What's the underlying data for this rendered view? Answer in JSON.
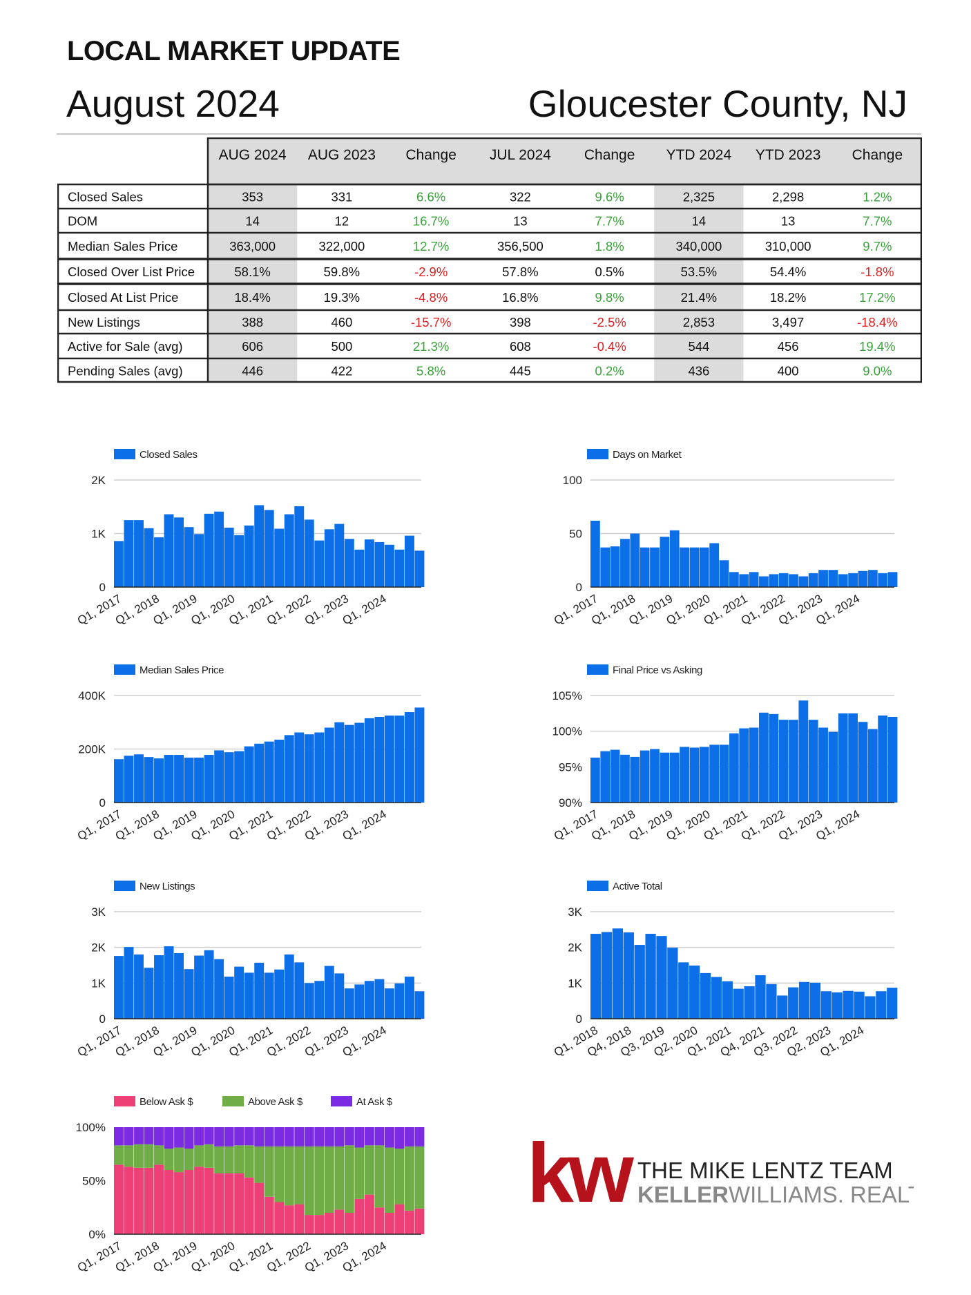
{
  "header": {
    "title": "LOCAL MARKET UPDATE",
    "month": "August 2024",
    "county": "Gloucester County, NJ"
  },
  "stats_table": {
    "columns": [
      "AUG 2024",
      "AUG 2023",
      "Change",
      "JUL 2024",
      "Change",
      "YTD 2024",
      "YTD 2023",
      "Change"
    ],
    "rows": [
      {
        "label": "Closed Sales",
        "values": [
          "353",
          "331",
          "6.6%",
          "322",
          "9.6%",
          "2,325",
          "2,298",
          "1.2%"
        ]
      },
      {
        "label": "DOM",
        "values": [
          "14",
          "12",
          "16.7%",
          "13",
          "7.7%",
          "14",
          "13",
          "7.7%"
        ]
      },
      {
        "label": "Median Sales Price",
        "values": [
          "363,000",
          "322,000",
          "12.7%",
          "356,500",
          "1.8%",
          "340,000",
          "310,000",
          "9.7%"
        ]
      },
      {
        "label": "Closed Over List Price",
        "values": [
          "58.1%",
          "59.8%",
          "-2.9%",
          "57.8%",
          "0.5%",
          "53.5%",
          "54.4%",
          "-1.8%"
        ]
      },
      {
        "label": "Closed At List Price",
        "values": [
          "18.4%",
          "19.3%",
          "-4.8%",
          "16.8%",
          "9.8%",
          "21.4%",
          "18.2%",
          "17.2%"
        ]
      },
      {
        "label": "New Listings",
        "values": [
          "388",
          "460",
          "-15.7%",
          "398",
          "-2.5%",
          "2,853",
          "3,497",
          "-18.4%"
        ]
      },
      {
        "label": "Active for Sale (avg)",
        "values": [
          "606",
          "500",
          "21.3%",
          "608",
          "-0.4%",
          "544",
          "456",
          "19.4%"
        ]
      },
      {
        "label": "Pending Sales (avg)",
        "values": [
          "446",
          "422",
          "5.8%",
          "445",
          "0.2%",
          "436",
          "400",
          "9.0%"
        ]
      }
    ],
    "colors": {
      "positive": "#3aa33a",
      "negative": "#e02020",
      "neutral": "#111111",
      "shaded": "#dcdcdc"
    }
  },
  "chart_data": [
    {
      "id": "closed-sales",
      "type": "bar",
      "legend": [
        "Closed Sales"
      ],
      "y_ticks": [
        "0",
        "1K",
        "2K"
      ],
      "ylim": [
        0,
        2000
      ],
      "grid": true,
      "legend_position": "top-left",
      "x_tick_labels": [
        "Q1, 2017",
        "Q1, 2018",
        "Q1, 2019",
        "Q1, 2020",
        "Q1, 2021",
        "Q1, 2022",
        "Q1, 2023",
        "Q1, 2024"
      ],
      "values": [
        860,
        1250,
        1250,
        1100,
        930,
        1360,
        1300,
        1120,
        990,
        1370,
        1410,
        1110,
        970,
        1150,
        1530,
        1440,
        1090,
        1360,
        1510,
        1260,
        870,
        1080,
        1180,
        900,
        700,
        890,
        840,
        790,
        700,
        960,
        680
      ]
    },
    {
      "id": "days-on-market",
      "type": "bar",
      "legend": [
        "Days on Market"
      ],
      "y_ticks": [
        "0",
        "50",
        "100"
      ],
      "ylim": [
        0,
        100
      ],
      "grid": true,
      "legend_position": "top-left",
      "x_tick_labels": [
        "Q1, 2017",
        "Q1, 2018",
        "Q1, 2019",
        "Q1, 2020",
        "Q1, 2021",
        "Q1, 2022",
        "Q1, 2023",
        "Q1, 2024"
      ],
      "values": [
        62,
        37,
        38,
        45,
        50,
        37,
        37,
        47,
        53,
        37,
        37,
        37,
        41,
        25,
        14,
        12,
        14,
        10,
        12,
        13,
        12,
        10,
        13,
        16,
        16,
        12,
        13,
        15,
        16,
        13,
        14
      ]
    },
    {
      "id": "median-sales-price",
      "type": "bar",
      "legend": [
        "Median Sales Price"
      ],
      "y_ticks": [
        "0",
        "200K",
        "400K"
      ],
      "ylim": [
        0,
        400000
      ],
      "grid": true,
      "legend_position": "top-left",
      "x_tick_labels": [
        "Q1, 2017",
        "Q1, 2018",
        "Q1, 2019",
        "Q1, 2020",
        "Q1, 2021",
        "Q1, 2022",
        "Q1, 2023",
        "Q1, 2024"
      ],
      "values": [
        162000,
        175000,
        180000,
        170000,
        165000,
        178000,
        178000,
        168000,
        168000,
        178000,
        195000,
        188000,
        192000,
        210000,
        220000,
        228000,
        235000,
        252000,
        262000,
        255000,
        262000,
        280000,
        300000,
        290000,
        298000,
        315000,
        320000,
        325000,
        325000,
        338000,
        355000
      ]
    },
    {
      "id": "final-price-vs-asking",
      "type": "bar",
      "legend": [
        "Final Price vs Asking"
      ],
      "y_ticks": [
        "90%",
        "95%",
        "100%",
        "105%"
      ],
      "ylim": [
        90,
        105
      ],
      "grid": true,
      "legend_position": "top-left",
      "x_tick_labels": [
        "Q1, 2017",
        "Q1, 2018",
        "Q1, 2019",
        "Q1, 2020",
        "Q1, 2021",
        "Q1, 2022",
        "Q1, 2023",
        "Q1, 2024"
      ],
      "values": [
        96.3,
        97.2,
        97.4,
        96.7,
        96.4,
        97.3,
        97.5,
        97.0,
        97.0,
        97.8,
        97.7,
        97.8,
        98.1,
        98.1,
        99.7,
        100.4,
        100.5,
        102.6,
        102.4,
        101.6,
        101.6,
        104.3,
        101.6,
        100.5,
        99.9,
        102.5,
        102.5,
        101.3,
        100.3,
        102.2,
        102.0
      ]
    },
    {
      "id": "new-listings",
      "type": "bar",
      "legend": [
        "New Listings"
      ],
      "y_ticks": [
        "0",
        "1K",
        "2K",
        "3K"
      ],
      "ylim": [
        0,
        3000
      ],
      "grid": true,
      "legend_position": "top-left",
      "x_tick_labels": [
        "Q1, 2017",
        "Q1, 2018",
        "Q1, 2019",
        "Q1, 2020",
        "Q1, 2021",
        "Q1, 2022",
        "Q1, 2023",
        "Q1, 2024"
      ],
      "values": [
        1760,
        2010,
        1800,
        1430,
        1780,
        2030,
        1840,
        1390,
        1770,
        1920,
        1670,
        1180,
        1460,
        1290,
        1570,
        1290,
        1380,
        1800,
        1580,
        1000,
        1060,
        1480,
        1270,
        850,
        960,
        1060,
        1110,
        850,
        990,
        1180,
        770
      ]
    },
    {
      "id": "active-total",
      "type": "bar",
      "legend": [
        "Active Total"
      ],
      "y_ticks": [
        "0",
        "1K",
        "2K",
        "3K"
      ],
      "ylim": [
        0,
        3000
      ],
      "grid": true,
      "legend_position": "top-left",
      "x_tick_labels": [
        "Q1, 2018",
        "Q4, 2018",
        "Q3, 2019",
        "Q2, 2020",
        "Q1, 2021",
        "Q4, 2021",
        "Q3, 2022",
        "Q2, 2023",
        "Q1, 2024"
      ],
      "values": [
        2380,
        2430,
        2530,
        2420,
        2070,
        2380,
        2320,
        1990,
        1580,
        1490,
        1280,
        1170,
        1050,
        840,
        910,
        1220,
        970,
        650,
        880,
        1030,
        1010,
        770,
        740,
        780,
        760,
        630,
        770,
        870
      ]
    },
    {
      "id": "sale-vs-ask",
      "type": "bar",
      "stacked": true,
      "legend": [
        "Below Ask $",
        "Above Ask $",
        "At Ask $"
      ],
      "y_ticks": [
        "0%",
        "50%",
        "100%"
      ],
      "ylim": [
        0,
        100
      ],
      "grid": false,
      "legend_position": "top-left",
      "x_tick_labels": [
        "Q1, 2017",
        "Q1, 2018",
        "Q1, 2019",
        "Q1, 2020",
        "Q1, 2021",
        "Q1, 2022",
        "Q1, 2023",
        "Q1, 2024"
      ],
      "series": [
        {
          "name": "Below Ask $",
          "values": [
            65,
            63,
            62,
            62,
            65,
            60,
            58,
            60,
            63,
            62,
            57,
            57,
            57,
            53,
            48,
            35,
            30,
            27,
            28,
            18,
            18,
            20,
            23,
            20,
            33,
            37,
            25,
            20,
            28,
            22,
            24
          ]
        },
        {
          "name": "Above Ask $",
          "values": [
            18,
            20,
            22,
            22,
            18,
            20,
            23,
            20,
            20,
            22,
            25,
            25,
            26,
            30,
            34,
            47,
            52,
            55,
            54,
            64,
            64,
            62,
            59,
            63,
            48,
            46,
            58,
            61,
            52,
            60,
            58
          ]
        },
        {
          "name": "At Ask $",
          "values": [
            17,
            17,
            16,
            16,
            17,
            20,
            19,
            20,
            17,
            16,
            18,
            18,
            17,
            17,
            18,
            18,
            18,
            18,
            18,
            18,
            18,
            18,
            18,
            17,
            19,
            17,
            17,
            19,
            20,
            18,
            18
          ]
        }
      ],
      "colors": [
        "#ec4077",
        "#70ad47",
        "#7b2be2"
      ]
    }
  ],
  "bar_color": "#0c6fe7",
  "logo": {
    "mark": "kw",
    "line1": "THE MIKE LENTZ TEAM",
    "line2_bold": "KELLER",
    "line2_rest": "WILLIAMS. REALTY",
    "mark_color": "#b5121b"
  }
}
